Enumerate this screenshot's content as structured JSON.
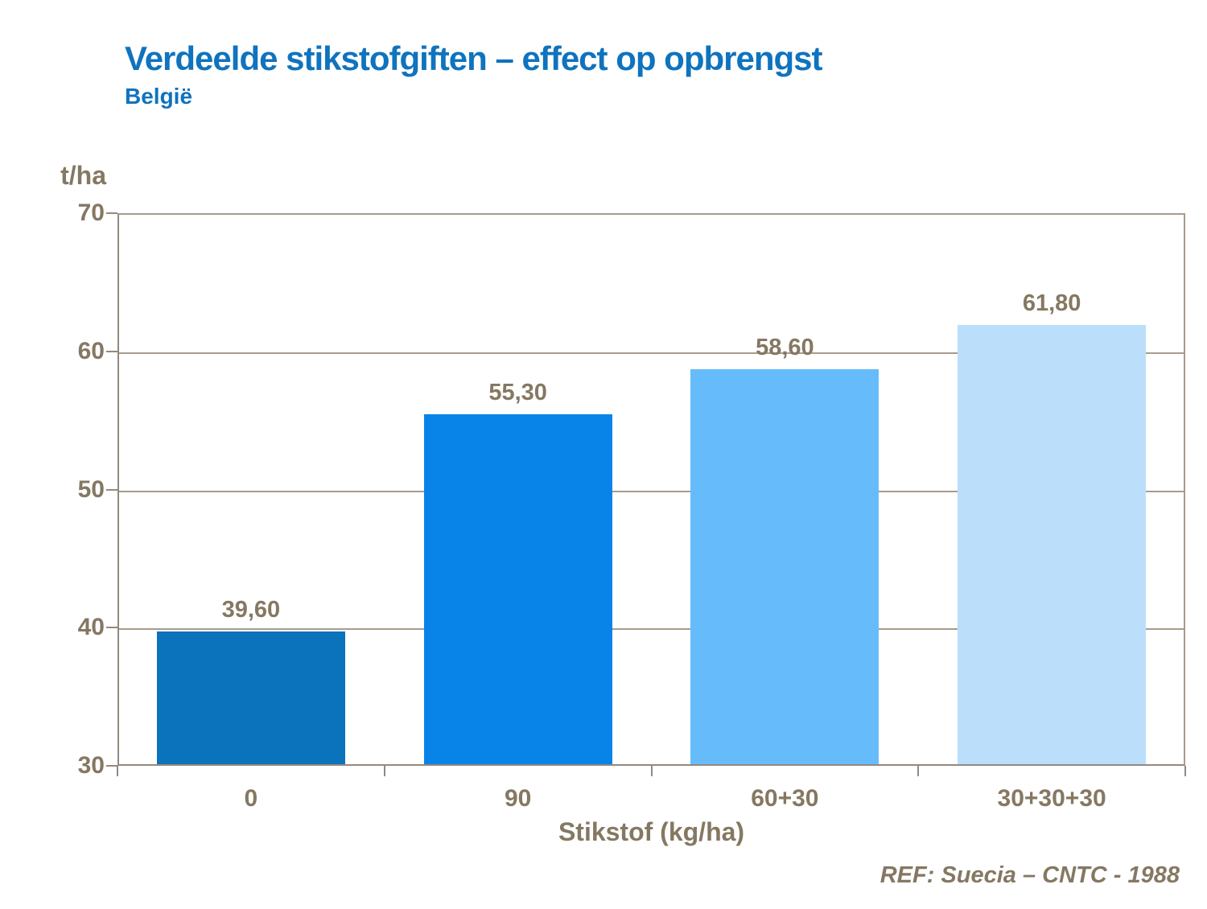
{
  "title": "Verdeelde stikstofgiften – effect op opbrengst",
  "subtitle": "België",
  "reference": "REF: Suecia – CNTC - 1988",
  "colors": {
    "title_blue": "#0F73BE",
    "label_brown": "#857862",
    "gridline": "#A89B8C",
    "axis_line": "#94897F"
  },
  "chart_data": {
    "type": "bar",
    "title": "Verdeelde stikstofgiften – effect op opbrengst",
    "subtitle": "België",
    "categories": [
      "0",
      "90",
      "60+30",
      "30+30+30"
    ],
    "values": [
      39.6,
      55.3,
      58.6,
      61.8
    ],
    "value_labels": [
      "39,60",
      "55,30",
      "58,60",
      "61,80"
    ],
    "bar_colors": [
      "#0B72BC",
      "#0884E8",
      "#66BCFA",
      "#BBDEFA"
    ],
    "xlabel": "Stikstof (kg/ha)",
    "ylabel": "t/ha",
    "ylim": [
      30,
      70
    ],
    "yticks": [
      30,
      40,
      50,
      60,
      70
    ],
    "grid": "horizontal",
    "legend": "none",
    "annotation": "REF: Suecia – CNTC - 1988"
  }
}
